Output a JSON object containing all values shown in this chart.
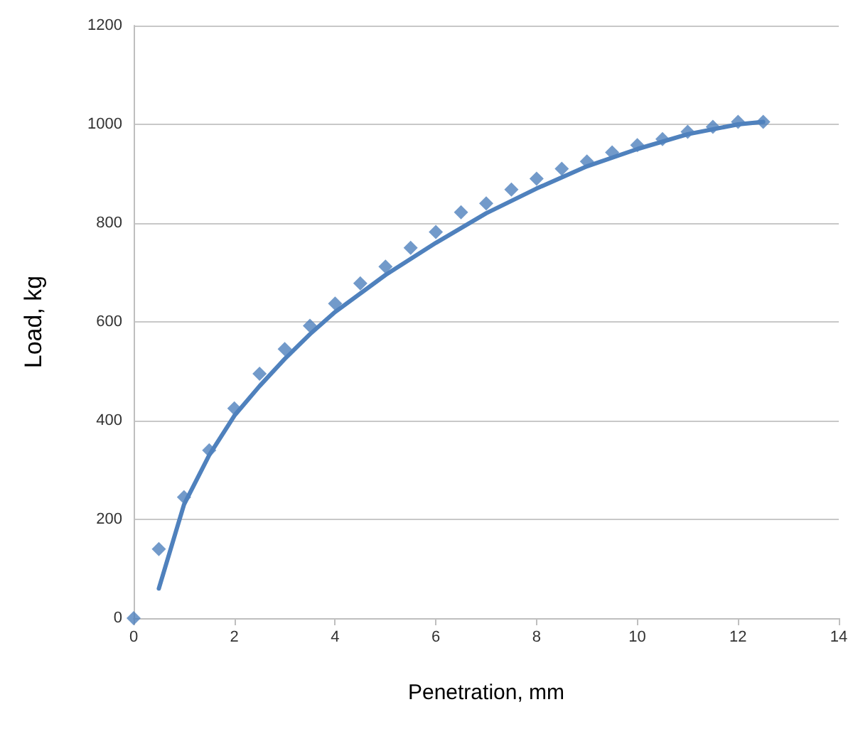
{
  "chart_data": {
    "type": "scatter",
    "xlabel": "Penetration, mm",
    "ylabel": "Load, kg",
    "xlim": [
      0,
      14
    ],
    "xticks": [
      0,
      2,
      4,
      6,
      8,
      10,
      12,
      14
    ],
    "ylim": [
      0,
      1200
    ],
    "yticks": [
      0,
      200,
      400,
      600,
      800,
      1000,
      1200
    ],
    "grid": "y",
    "series": [
      {
        "marker": "diamond",
        "color": "#4f81bd",
        "x": [
          0,
          0.5,
          1,
          1.5,
          2,
          2.5,
          3,
          3.5,
          4,
          4.5,
          5,
          5.5,
          6,
          6.5,
          7,
          7.5,
          8,
          8.5,
          9,
          9.5,
          10,
          10.5,
          11,
          11.5,
          12,
          12.5
        ],
        "values": [
          0,
          140,
          245,
          340,
          425,
          495,
          545,
          592,
          637,
          678,
          712,
          750,
          782,
          822,
          840,
          868,
          890,
          910,
          925,
          943,
          958,
          970,
          985,
          995,
          1005,
          1005
        ]
      },
      {
        "type": "line",
        "marker": "none",
        "color": "#4f81bd",
        "x": [
          0.5,
          1,
          1.5,
          2,
          2.5,
          3,
          3.5,
          4,
          5,
          6,
          7,
          8,
          9,
          10,
          11,
          12,
          12.5
        ],
        "values": [
          60,
          230,
          330,
          410,
          470,
          525,
          575,
          620,
          695,
          760,
          820,
          870,
          915,
          950,
          980,
          1000,
          1005
        ]
      }
    ]
  }
}
